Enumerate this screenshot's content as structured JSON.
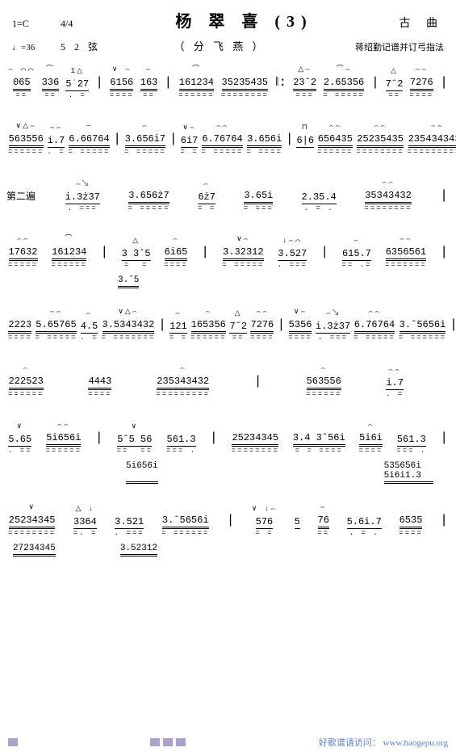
{
  "header": {
    "key": "1=C",
    "time": "4/4",
    "title": "杨 翠 喜 (3)",
    "composer": "古  曲",
    "tempo": "♩=36",
    "tuning": "5 2 弦",
    "subtitle": "（ 分 飞 燕 ）",
    "arranger": "蒋绍勤记谱并订弓指法"
  },
  "lines": [
    {
      "type": "staff",
      "cells": [
        {
          "marks": "⌢ ⌒⌒",
          "notes": "065",
          "under": "==",
          "dbl": true
        },
        {
          "marks": "⌒",
          "notes": "336",
          "under": "==",
          "dbl": true
        },
        {
          "marks": "1△",
          "notes": "5˙27",
          "under": ". =",
          "dbl": false
        },
        {
          "bar": "|"
        },
        {
          "marks": "∨ ⌢",
          "notes": "6156",
          "under": "====",
          "dbl": true
        },
        {
          "marks": "⌢",
          "notes": "163",
          "under": "==",
          "dbl": true
        },
        {
          "bar": "|"
        },
        {
          "marks": "⌒",
          "notes": "161234",
          "under": "======",
          "dbl": true
        },
        {
          "marks": " ",
          "notes": "35235435",
          "under": "========",
          "dbl": true
        },
        {
          "bar": "‖:"
        },
        {
          "marks": "△⌢",
          "notes": "23ˆ2",
          "under": "===",
          "dbl": true
        },
        {
          "marks": "⌒⌢",
          "notes": "2.65356",
          "under": "= =====",
          "dbl": true
        },
        {
          "bar": "|"
        },
        {
          "marks": "△",
          "notes": "7ˆ2",
          "under": "==",
          "dbl": false
        },
        {
          "marks": "⌢⌢",
          "notes": "7276",
          "under": "====",
          "dbl": true
        },
        {
          "bar": "|"
        }
      ]
    },
    {
      "type": "staff",
      "cells": [
        {
          "marks": "∨△⌢",
          "notes": "563556",
          "under": "======",
          "dbl": true
        },
        {
          "marks": "⌢⌢",
          "notes": "i.7",
          "under": ". =",
          "dbl": false
        },
        {
          "marks": "⌣",
          "notes": "6.66764",
          "under": "= =====",
          "dbl": true
        },
        {
          "bar": "|"
        },
        {
          "marks": "⌢",
          "notes": "3.656i7",
          "under": "= =====",
          "dbl": true
        },
        {
          "bar": "|"
        },
        {
          "marks": "∨⌢",
          "notes": "6i7",
          "under": "= =",
          "dbl": false
        },
        {
          "marks": "⌢⌢",
          "notes": "6.76764",
          "under": "= =====",
          "dbl": true
        },
        {
          "marks": " ",
          "notes": "3.656i",
          "under": "= ====",
          "dbl": true
        },
        {
          "bar": "|"
        },
        {
          "marks": "⊓",
          "notes": "6|6",
          "under": " ",
          "dbl": false
        },
        {
          "marks": "⌢⌢",
          "notes": "656435",
          "under": "======",
          "dbl": true
        },
        {
          "marks": "⌢⌢",
          "notes": "25235435",
          "under": "========",
          "dbl": true
        },
        {
          "marks": "⌢⌢",
          "notes": "235434343ż",
          "under": "==========",
          "dbl": true
        },
        {
          "bar": "|"
        }
      ]
    },
    {
      "type": "staff",
      "cells": [
        {
          "label": "第二遍"
        },
        {
          "marks": "⌢↘",
          "notes": "i.3ż37",
          "under": ". ===",
          "dbl": false
        },
        {
          "marks": " ",
          "notes": "3.656ż7",
          "under": "= =====",
          "dbl": true
        },
        {
          "marks": "⌢",
          "notes": "6ż7",
          "under": "= =",
          "dbl": false
        },
        {
          "marks": " ",
          "notes": "3.65i",
          "under": "= ===",
          "dbl": true
        },
        {
          "marks": " ",
          "notes": "2.35.4",
          "under": ". = .",
          "dbl": false
        },
        {
          "marks": "⌢⌢",
          "notes": "35343432",
          "under": "========",
          "dbl": true
        },
        {
          "bar": "|"
        }
      ]
    },
    {
      "type": "staff",
      "cells": [
        {
          "marks": "⌢⌢",
          "notes": "17632",
          "under": "=====",
          "dbl": true
        },
        {
          "marks": "⌒",
          "notes": "161234",
          "under": "======",
          "dbl": true
        },
        {
          "bar": "|"
        },
        {
          "marks": "△",
          "notes": "3 3ˆ5",
          "under": "=  =",
          "dbl": false
        },
        {
          "marks": "⌢",
          "notes": "6i65",
          "under": "====",
          "dbl": true
        },
        {
          "bar": "|"
        },
        {
          "marks": "∨⌢",
          "notes": "3.32312",
          "under": "= =====",
          "dbl": true
        },
        {
          "marks": "↓⌢⌒",
          "notes": "3.527",
          "under": ". ===",
          "dbl": false
        },
        {
          "bar": "|"
        },
        {
          "marks": "⌢",
          "notes": "615.7",
          "under": "== .=",
          "dbl": false
        },
        {
          "marks": "⌢⌢",
          "notes": "6356561",
          "under": "=======",
          "dbl": true
        },
        {
          "bar": "|"
        }
      ]
    },
    {
      "type": "sub",
      "items": [
        {
          "text": "3.ˆ5",
          "pad": 130
        }
      ]
    },
    {
      "type": "staff",
      "cells": [
        {
          "marks": " ",
          "notes": "2223",
          "under": "====",
          "dbl": true
        },
        {
          "marks": "⌢⌢",
          "notes": "5.65765",
          "under": "= =====",
          "dbl": true
        },
        {
          "marks": "⌢",
          "notes": "4.5",
          "under": ". =",
          "dbl": false
        },
        {
          "marks": "∨△⌢",
          "notes": "3.5343432",
          "under": "= =======",
          "dbl": true
        },
        {
          "bar": "|"
        },
        {
          "marks": "⌢",
          "notes": "121",
          "under": "= =",
          "dbl": false
        },
        {
          "marks": "⌢",
          "notes": "165356",
          "under": "======",
          "dbl": true
        },
        {
          "marks": "△",
          "notes": "7ˆ2",
          "under": "==",
          "dbl": false
        },
        {
          "marks": "⌢⌢",
          "notes": "7276",
          "under": "====",
          "dbl": true
        },
        {
          "bar": "|"
        },
        {
          "marks": "∨⌢",
          "notes": "5356",
          "under": "====",
          "dbl": true
        },
        {
          "marks": "⌢↘",
          "notes": "i.3ż37",
          "under": ". ===",
          "dbl": false
        },
        {
          "marks": "⌢⌢",
          "notes": "6.76764",
          "under": "= =====",
          "dbl": true
        },
        {
          "marks": " ",
          "notes": "3.ˆ5656i",
          "under": "= ======",
          "dbl": true
        },
        {
          "bar": "|"
        }
      ]
    },
    {
      "type": "staff",
      "cells": [
        {
          "marks": "⌢",
          "notes": "222523",
          "under": "======",
          "dbl": true
        },
        {
          "marks": " ",
          "notes": "4443",
          "under": "====",
          "dbl": true
        },
        {
          "marks": "⌢",
          "notes": "235343432",
          "under": "=========",
          "dbl": true
        },
        {
          "bar": "|"
        },
        {
          "marks": "⌢",
          "notes": "563556",
          "under": "======",
          "dbl": true
        },
        {
          "marks": "⌢⌢",
          "notes": "i.7",
          "under": ". =",
          "dbl": false
        },
        {
          "bar": " "
        }
      ]
    },
    {
      "type": "staff",
      "cells": [
        {
          "marks": "∨",
          "notes": "5.65",
          "under": ". ==",
          "dbl": false
        },
        {
          "marks": "⌢⌢",
          "notes": "5i656i",
          "under": "======",
          "dbl": true
        },
        {
          "bar": "|"
        },
        {
          "marks": "∨",
          "notes": "5ˆ5 56",
          "under": "==  ==",
          "dbl": false
        },
        {
          "marks": " ",
          "notes": "561.3",
          "under": "=== .",
          "dbl": false
        },
        {
          "bar": "|"
        },
        {
          "marks": " ",
          "notes": "25234345",
          "under": "========",
          "dbl": true
        },
        {
          "marks": " ",
          "notes": "3.4 3ˆ56i",
          "under": "= = ====",
          "dbl": true
        },
        {
          "marks": "⌢",
          "notes": "5i6i",
          "under": "====",
          "dbl": true
        },
        {
          "marks": " ",
          "notes": "561.3",
          "under": "=== .",
          "dbl": false
        },
        {
          "bar": "|"
        }
      ]
    },
    {
      "type": "sub",
      "items": [
        {
          "text": "5i656i",
          "pad": 140
        },
        {
          "text": "535656i 5i6i1.3",
          "pad": 260
        }
      ]
    },
    {
      "type": "staff",
      "cells": [
        {
          "marks": "∨",
          "notes": "25234345",
          "under": "========",
          "dbl": true
        },
        {
          "marks": "△ ↓",
          "notes": "3364",
          "under": "=. =",
          "dbl": false
        },
        {
          "marks": " ",
          "notes": "3.521",
          "under": ". ===",
          "dbl": false
        },
        {
          "marks": " ",
          "notes": "3.ˆ5656i",
          "under": "= ======",
          "dbl": true
        },
        {
          "bar": "|"
        },
        {
          "marks": "∨ ↓⌢",
          "notes": "576",
          "under": "= =",
          "dbl": false
        },
        {
          "marks": " ",
          "notes": "5",
          "under": " ",
          "dbl": false
        },
        {
          "marks": "⌢",
          "notes": "76",
          "under": "==",
          "dbl": true
        },
        {
          "marks": " ",
          "notes": "5.6i.7",
          "under": ". = .",
          "dbl": false
        },
        {
          "marks": " ",
          "notes": "6535",
          "under": "====",
          "dbl": true
        },
        {
          "bar": "|"
        }
      ]
    },
    {
      "type": "sub",
      "items": [
        {
          "text": "27234345",
          "pad": 0
        },
        {
          "text": "3.52312",
          "pad": 60
        }
      ]
    }
  ],
  "footer": {
    "text": "好歌谱请访问：",
    "url": "www.haogepu.org"
  },
  "colors": {
    "deco": "#8a7ab5",
    "link": "#5b7fc4"
  }
}
